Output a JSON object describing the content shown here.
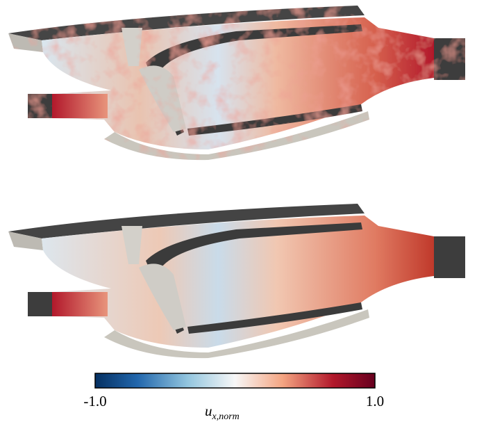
{
  "colorbar": {
    "min_label": "-1.0",
    "max_label": "1.0",
    "label_symbol": "u",
    "label_subscript": "x,norm"
  }
}
